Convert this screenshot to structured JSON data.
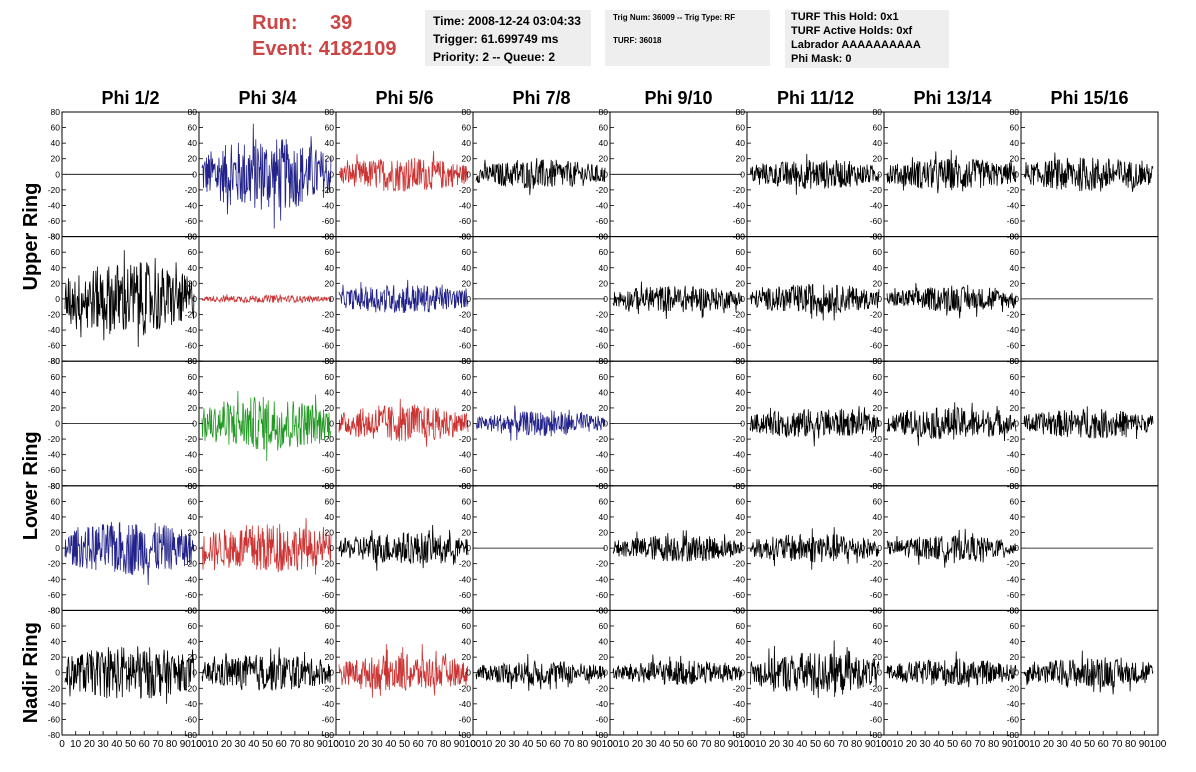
{
  "header": {
    "run_label": "Run:",
    "run_value": "39",
    "event_label": "Event:",
    "event_value": "4182109",
    "time_line": "Time: 2008-12-24 03:04:33",
    "trigger_line": "Trigger: 61.699749 ms",
    "priority_line": "Priority: 2 -- Queue: 2",
    "trig_line": "Trig Num: 36009 -- Trig Type: RF",
    "turf_line": "TURF: 36018",
    "turf_hold_line": "TURF This Hold: 0x1",
    "turf_active_line": "TURF Active Holds: 0xf",
    "labrador_line": "Labrador AAAAAAAAAA",
    "phi_mask_line": "Phi Mask: 0"
  },
  "colors": {
    "red": "#cc3333",
    "blue": "#22228a",
    "green": "#229922",
    "black": "#000000",
    "header_red": "#cc4444",
    "info_bg": "#eeeeee"
  },
  "chart_data": {
    "type": "line",
    "columns": [
      "Phi 1/2",
      "Phi 3/4",
      "Phi 5/6",
      "Phi 7/8",
      "Phi 9/10",
      "Phi 11/12",
      "Phi 13/14",
      "Phi 15/16"
    ],
    "row_groups": [
      {
        "label": "Upper Ring",
        "rows": [
          0,
          1
        ]
      },
      {
        "label": "Lower Ring",
        "rows": [
          2,
          3
        ]
      },
      {
        "label": "Nadir Ring",
        "rows": [
          4
        ]
      }
    ],
    "ylim": [
      -80,
      80
    ],
    "y_ticks": [
      -80,
      -60,
      -40,
      -20,
      0,
      20,
      40,
      60,
      80
    ],
    "y_tick_labels": [
      "-80",
      "-60",
      "-40",
      "-20",
      "0",
      "20",
      "40",
      "60",
      "80"
    ],
    "xlim": [
      0,
      100
    ],
    "x_tick_labels": [
      "0",
      "10",
      "20",
      "30",
      "40",
      "50",
      "60",
      "70",
      "80",
      "90",
      "100"
    ],
    "waveform_samples": 260,
    "panels": [
      [
        {
          "color": "black",
          "amp": 0
        },
        {
          "color": "blue",
          "amp": 30
        },
        {
          "color": "red",
          "amp": 14
        },
        {
          "color": "black",
          "amp": 12
        },
        {
          "color": "black",
          "amp": 0
        },
        {
          "color": "black",
          "amp": 12
        },
        {
          "color": "black",
          "amp": 13
        },
        {
          "color": "black",
          "amp": 14
        }
      ],
      [
        {
          "color": "black",
          "amp": 30
        },
        {
          "color": "red",
          "amp": 3
        },
        {
          "color": "blue",
          "amp": 12
        },
        {
          "color": "black",
          "amp": 0
        },
        {
          "color": "black",
          "amp": 11
        },
        {
          "color": "black",
          "amp": 12
        },
        {
          "color": "black",
          "amp": 10
        },
        {
          "color": "black",
          "amp": 0
        }
      ],
      [
        {
          "color": "black",
          "amp": 0
        },
        {
          "color": "green",
          "amp": 22
        },
        {
          "color": "red",
          "amp": 15
        },
        {
          "color": "blue",
          "amp": 10
        },
        {
          "color": "black",
          "amp": 0
        },
        {
          "color": "black",
          "amp": 12
        },
        {
          "color": "black",
          "amp": 13
        },
        {
          "color": "black",
          "amp": 12
        }
      ],
      [
        {
          "color": "blue",
          "amp": 22
        },
        {
          "color": "red",
          "amp": 20
        },
        {
          "color": "black",
          "amp": 13
        },
        {
          "color": "black",
          "amp": 0
        },
        {
          "color": "black",
          "amp": 11
        },
        {
          "color": "black",
          "amp": 12
        },
        {
          "color": "black",
          "amp": 10
        },
        {
          "color": "black",
          "amp": 0
        }
      ],
      [
        {
          "color": "black",
          "amp": 22
        },
        {
          "color": "black",
          "amp": 15
        },
        {
          "color": "red",
          "amp": 15
        },
        {
          "color": "black",
          "amp": 10
        },
        {
          "color": "black",
          "amp": 10
        },
        {
          "color": "black",
          "amp": 17
        },
        {
          "color": "black",
          "amp": 11
        },
        {
          "color": "black",
          "amp": 12
        }
      ]
    ]
  }
}
